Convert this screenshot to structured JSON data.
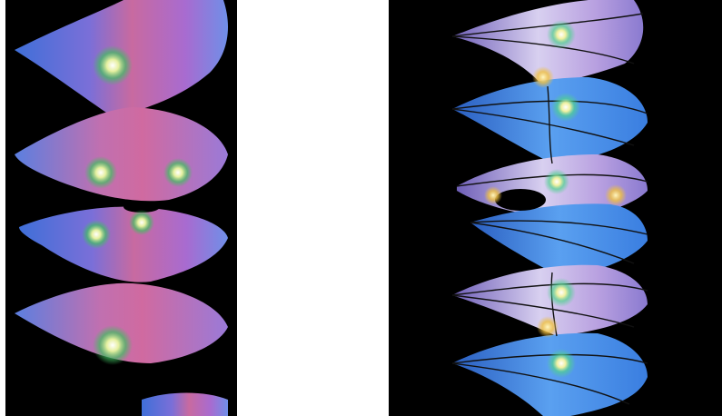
{
  "figure": {
    "panels": [
      {
        "id": "left",
        "subject": "helicoid-minimal-surface",
        "background": "#000000",
        "colors": [
          "#3f6fd8",
          "#a86bd0",
          "#c86aa0",
          "#3fbf5f",
          "#e6e6c0",
          "#6f8fe8"
        ]
      },
      {
        "id": "right",
        "subject": "helicoid-with-handle-and-curves",
        "background": "#000000",
        "colors": [
          "#3a7ee0",
          "#b8a0e0",
          "#f0c040",
          "#50d090",
          "#e0d8ff",
          "#111111"
        ]
      }
    ]
  }
}
